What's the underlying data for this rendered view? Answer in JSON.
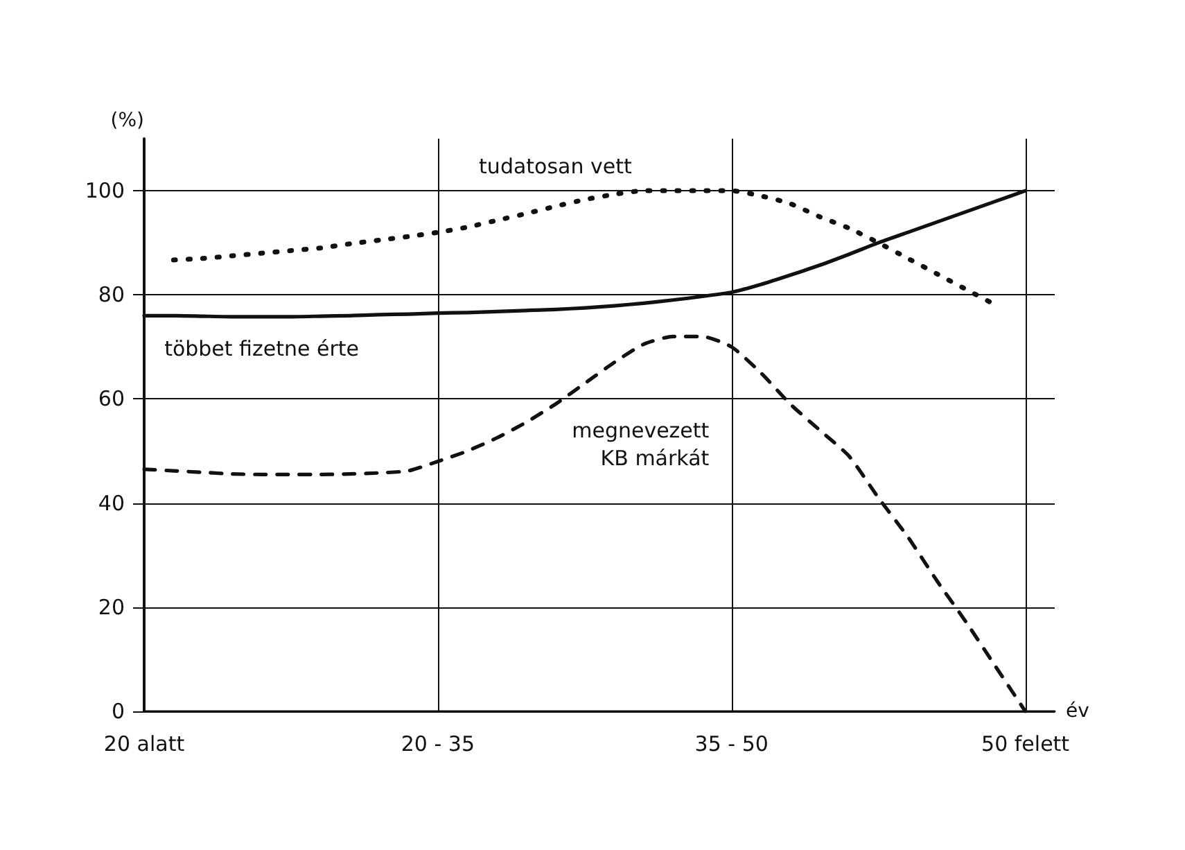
{
  "chart_data": {
    "type": "line",
    "ylabel": "(%)",
    "xlabel": "év",
    "categories": [
      "20 alatt",
      null,
      null,
      null,
      null,
      null,
      null,
      null,
      null,
      null,
      "20 - 35",
      null,
      null,
      null,
      null,
      null,
      null,
      null,
      null,
      null,
      "35 - 50",
      null,
      null,
      null,
      null,
      null,
      null,
      null,
      null,
      null,
      "50 felett",
      null
    ],
    "ylim": [
      0,
      110
    ],
    "yticks": [
      0,
      20,
      40,
      60,
      80,
      100
    ],
    "grid": true,
    "marker": "none",
    "legend": false,
    "series": [
      {
        "name": "tudatosan vett",
        "color": "#111111",
        "line_style": "dotted",
        "values": [
          null,
          86.7,
          87,
          87.5,
          88,
          88.5,
          89,
          89.8,
          90.5,
          91.2,
          92,
          93,
          94.3,
          95.6,
          97,
          98.3,
          99.3,
          100,
          100,
          100,
          100,
          99,
          97.5,
          95,
          92.8,
          90,
          87,
          84,
          81,
          78,
          null,
          null
        ]
      },
      {
        "name": "többet fizetne érte",
        "color": "#111111",
        "line_style": "solid",
        "values": [
          76,
          76,
          75.9,
          75.8,
          75.8,
          75.8,
          75.9,
          76,
          76.2,
          76.3,
          76.5,
          76.6,
          76.8,
          77,
          77.2,
          77.5,
          77.9,
          78.4,
          79,
          79.7,
          80.5,
          82,
          83.8,
          85.7,
          87.8,
          90,
          92,
          94,
          96,
          98,
          100,
          null
        ]
      },
      {
        "name": "megnevezett\nKB márkát",
        "color": "#111111",
        "line_style": "dashed",
        "values": [
          46.5,
          46.2,
          45.9,
          45.6,
          45.5,
          45.5,
          45.5,
          45.6,
          45.8,
          46.2,
          48,
          50,
          52.5,
          55.5,
          59,
          63,
          67,
          70.5,
          72,
          72,
          70,
          65,
          59,
          54,
          49,
          41,
          33.5,
          25,
          17,
          8.5,
          0,
          null
        ]
      }
    ]
  }
}
